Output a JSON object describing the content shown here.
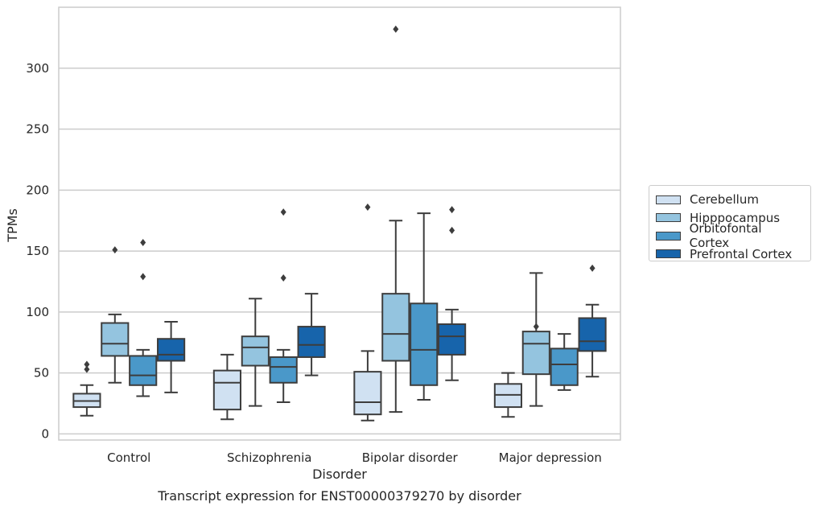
{
  "caption": "Transcript expression for ENST00000379270 by disorder",
  "chart_data": {
    "type": "box",
    "xlabel": "Disorder",
    "ylabel": "TPMs",
    "ylim": [
      -5,
      350
    ],
    "yticks": [
      0,
      50,
      100,
      150,
      200,
      250,
      300
    ],
    "grid": "horizontal",
    "legend_position": "right",
    "categories": [
      "Control",
      "Schizophrenia",
      "Bipolar disorder",
      "Major depression"
    ],
    "series": [
      {
        "name": "Cerebellum",
        "color": "#d0e1f2",
        "boxes": [
          {
            "whislo": 15,
            "q1": 22,
            "med": 27,
            "q3": 33,
            "whishi": 40,
            "fliers": [
              53,
              57
            ]
          },
          {
            "whislo": 12,
            "q1": 20,
            "med": 42,
            "q3": 52,
            "whishi": 65,
            "fliers": []
          },
          {
            "whislo": 11,
            "q1": 16,
            "med": 26,
            "q3": 51,
            "whishi": 68,
            "fliers": [
              186
            ]
          },
          {
            "whislo": 14,
            "q1": 22,
            "med": 32,
            "q3": 41,
            "whishi": 50,
            "fliers": []
          }
        ]
      },
      {
        "name": "Hipppocampus",
        "color": "#94c4df",
        "boxes": [
          {
            "whislo": 42,
            "q1": 64,
            "med": 74,
            "q3": 91,
            "whishi": 98,
            "fliers": [
              151
            ]
          },
          {
            "whislo": 23,
            "q1": 56,
            "med": 71,
            "q3": 80,
            "whishi": 111,
            "fliers": []
          },
          {
            "whislo": 18,
            "q1": 60,
            "med": 82,
            "q3": 115,
            "whishi": 175,
            "fliers": [
              332
            ]
          },
          {
            "whislo": 23,
            "q1": 49,
            "med": 74,
            "q3": 84,
            "whishi": 132,
            "fliers": [
              88
            ]
          }
        ]
      },
      {
        "name": "Orbitofontal Cortex",
        "color": "#4a98c9",
        "boxes": [
          {
            "whislo": 31,
            "q1": 40,
            "med": 48,
            "q3": 64,
            "whishi": 69,
            "fliers": [
              129,
              157
            ]
          },
          {
            "whislo": 26,
            "q1": 42,
            "med": 55,
            "q3": 63,
            "whishi": 69,
            "fliers": [
              128,
              182
            ]
          },
          {
            "whislo": 28,
            "q1": 40,
            "med": 69,
            "q3": 107,
            "whishi": 181,
            "fliers": []
          },
          {
            "whislo": 36,
            "q1": 40,
            "med": 57,
            "q3": 70,
            "whishi": 82,
            "fliers": []
          }
        ]
      },
      {
        "name": "Prefrontal Cortex",
        "color": "#1764ab",
        "boxes": [
          {
            "whislo": 34,
            "q1": 60,
            "med": 65,
            "q3": 78,
            "whishi": 92,
            "fliers": []
          },
          {
            "whislo": 48,
            "q1": 63,
            "med": 73,
            "q3": 88,
            "whishi": 115,
            "fliers": []
          },
          {
            "whislo": 44,
            "q1": 65,
            "med": 80,
            "q3": 90,
            "whishi": 102,
            "fliers": [
              167,
              184
            ]
          },
          {
            "whislo": 47,
            "q1": 68,
            "med": 76,
            "q3": 95,
            "whishi": 106,
            "fliers": [
              136
            ]
          }
        ]
      }
    ]
  }
}
